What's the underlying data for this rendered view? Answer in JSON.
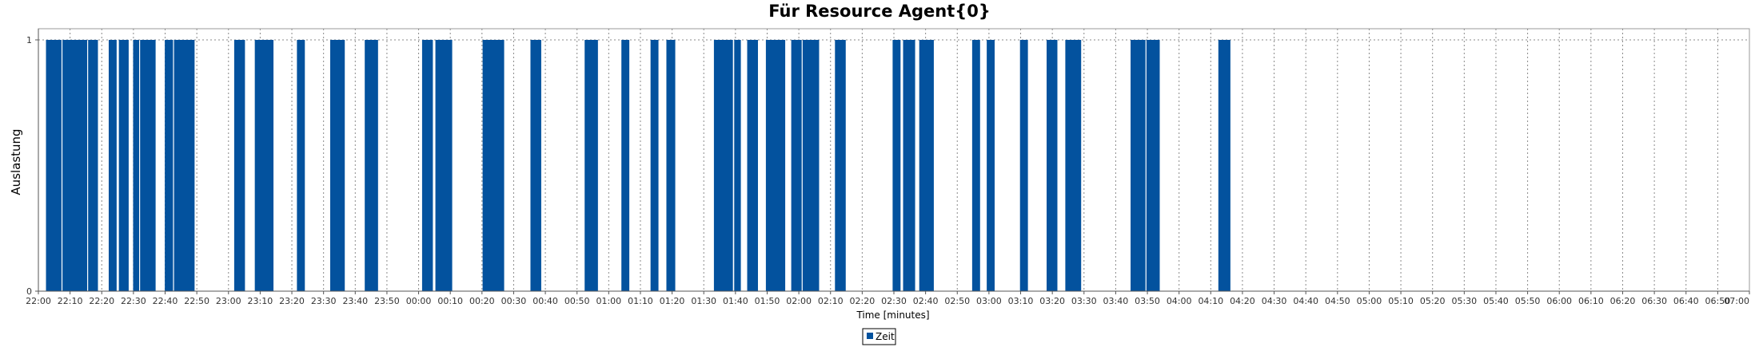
{
  "chart_data": {
    "type": "bar",
    "title": "Für Resource Agent{0}",
    "xlabel": "Time [minutes]",
    "ylabel": "Auslastung",
    "x_range_minutes": [
      0,
      540
    ],
    "ylim": [
      0,
      1
    ],
    "y_ticks": [
      "0",
      "1"
    ],
    "x_ticks": [
      "22:00",
      "22:10",
      "22:20",
      "22:30",
      "22:40",
      "22:50",
      "23:00",
      "23:10",
      "23:20",
      "23:30",
      "23:40",
      "23:50",
      "00:00",
      "00:10",
      "00:20",
      "00:30",
      "00:40",
      "00:50",
      "01:00",
      "01:10",
      "01:20",
      "01:30",
      "01:40",
      "01:50",
      "02:00",
      "02:10",
      "02:20",
      "02:30",
      "02:40",
      "02:50",
      "03:00",
      "03:10",
      "03:20",
      "03:30",
      "03:40",
      "03:50",
      "04:00",
      "04:10",
      "04:20",
      "04:30",
      "04:40",
      "04:50",
      "05:00",
      "05:10",
      "05:20",
      "05:30",
      "05:40",
      "05:50",
      "06:00",
      "06:10",
      "06:20",
      "06:30",
      "06:40",
      "06:50",
      "07:00"
    ],
    "grid": true,
    "legend_position": "bottom-center",
    "series": [
      {
        "name": "Zeit",
        "color": "#03529e",
        "bars": [
          {
            "start": 2.4,
            "end": 7.3,
            "value": 1
          },
          {
            "start": 7.6,
            "end": 15.4,
            "value": 1
          },
          {
            "start": 15.7,
            "end": 18.8,
            "value": 1
          },
          {
            "start": 22.2,
            "end": 24.7,
            "value": 1
          },
          {
            "start": 25.4,
            "end": 28.5,
            "value": 1
          },
          {
            "start": 29.9,
            "end": 31.8,
            "value": 1
          },
          {
            "start": 32.1,
            "end": 37.0,
            "value": 1
          },
          {
            "start": 39.9,
            "end": 42.5,
            "value": 1
          },
          {
            "start": 42.8,
            "end": 49.3,
            "value": 1
          },
          {
            "start": 61.8,
            "end": 65.2,
            "value": 1
          },
          {
            "start": 68.3,
            "end": 74.2,
            "value": 1
          },
          {
            "start": 81.6,
            "end": 84.1,
            "value": 1
          },
          {
            "start": 92.1,
            "end": 96.7,
            "value": 1
          },
          {
            "start": 103.0,
            "end": 107.2,
            "value": 1
          },
          {
            "start": 121.1,
            "end": 124.5,
            "value": 1
          },
          {
            "start": 125.3,
            "end": 130.6,
            "value": 1
          },
          {
            "start": 140.2,
            "end": 147.0,
            "value": 1
          },
          {
            "start": 155.3,
            "end": 158.7,
            "value": 1
          },
          {
            "start": 172.4,
            "end": 176.6,
            "value": 1
          },
          {
            "start": 184.0,
            "end": 186.5,
            "value": 1
          },
          {
            "start": 193.2,
            "end": 195.7,
            "value": 1
          },
          {
            "start": 198.2,
            "end": 201.0,
            "value": 1
          },
          {
            "start": 213.2,
            "end": 219.2,
            "value": 1
          },
          {
            "start": 219.6,
            "end": 221.7,
            "value": 1
          },
          {
            "start": 223.7,
            "end": 227.1,
            "value": 1
          },
          {
            "start": 229.6,
            "end": 235.7,
            "value": 1
          },
          {
            "start": 237.6,
            "end": 240.9,
            "value": 1
          },
          {
            "start": 241.2,
            "end": 246.4,
            "value": 1
          },
          {
            "start": 251.4,
            "end": 254.8,
            "value": 1
          },
          {
            "start": 269.6,
            "end": 272.1,
            "value": 1
          },
          {
            "start": 272.9,
            "end": 276.7,
            "value": 1
          },
          {
            "start": 278.0,
            "end": 282.6,
            "value": 1
          },
          {
            "start": 294.7,
            "end": 297.2,
            "value": 1
          },
          {
            "start": 299.3,
            "end": 301.8,
            "value": 1
          },
          {
            "start": 309.8,
            "end": 312.3,
            "value": 1
          },
          {
            "start": 318.2,
            "end": 321.6,
            "value": 1
          },
          {
            "start": 324.1,
            "end": 329.1,
            "value": 1
          },
          {
            "start": 344.7,
            "end": 349.4,
            "value": 1
          },
          {
            "start": 349.7,
            "end": 353.9,
            "value": 1
          },
          {
            "start": 372.4,
            "end": 376.2,
            "value": 1
          }
        ]
      }
    ]
  }
}
